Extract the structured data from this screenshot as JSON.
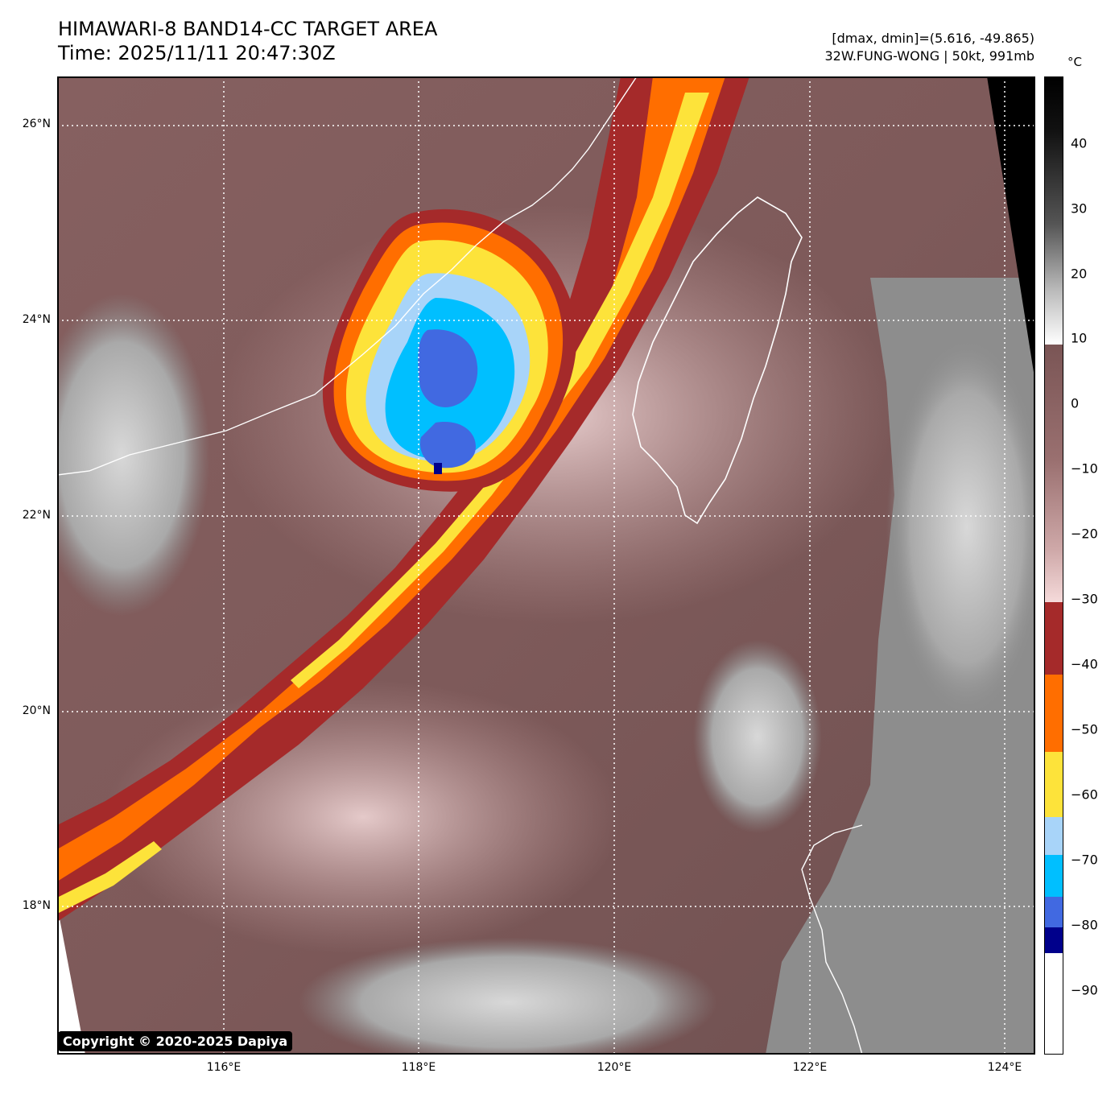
{
  "header": {
    "title": "HIMAWARI-8 BAND14-CC TARGET AREA",
    "time": "Time: 2025/11/11 20:47:30Z",
    "dmax_dmin": "[dmax, dmin]=(5.616, -49.865)",
    "storm": "32W.FUNG-WONG | 50kt, 991mb"
  },
  "map": {
    "lat_labels": [
      "26°N",
      "24°N",
      "22°N",
      "20°N",
      "18°N"
    ],
    "lon_labels": [
      "116°E",
      "118°E",
      "120°E",
      "122°E",
      "124°E"
    ],
    "colors": {
      "land_outline": "#ffffff",
      "warm_cloud": "#8c6666",
      "cold_anvil": "#a52a2a",
      "orange": "#ff6e00",
      "yellow": "#fde33a",
      "light_blue": "#a8d4f9",
      "cyan": "#00bfff",
      "blue": "#4169e1",
      "navy": "#00008b"
    }
  },
  "colorbar": {
    "unit": "°C",
    "ticks": [
      "40",
      "30",
      "20",
      "10",
      "0",
      "−10",
      "−20",
      "−30",
      "−40",
      "−50",
      "−60",
      "−70",
      "−80",
      "−90"
    ]
  },
  "copyright": "Copyright © 2020-2025 Dapiya"
}
